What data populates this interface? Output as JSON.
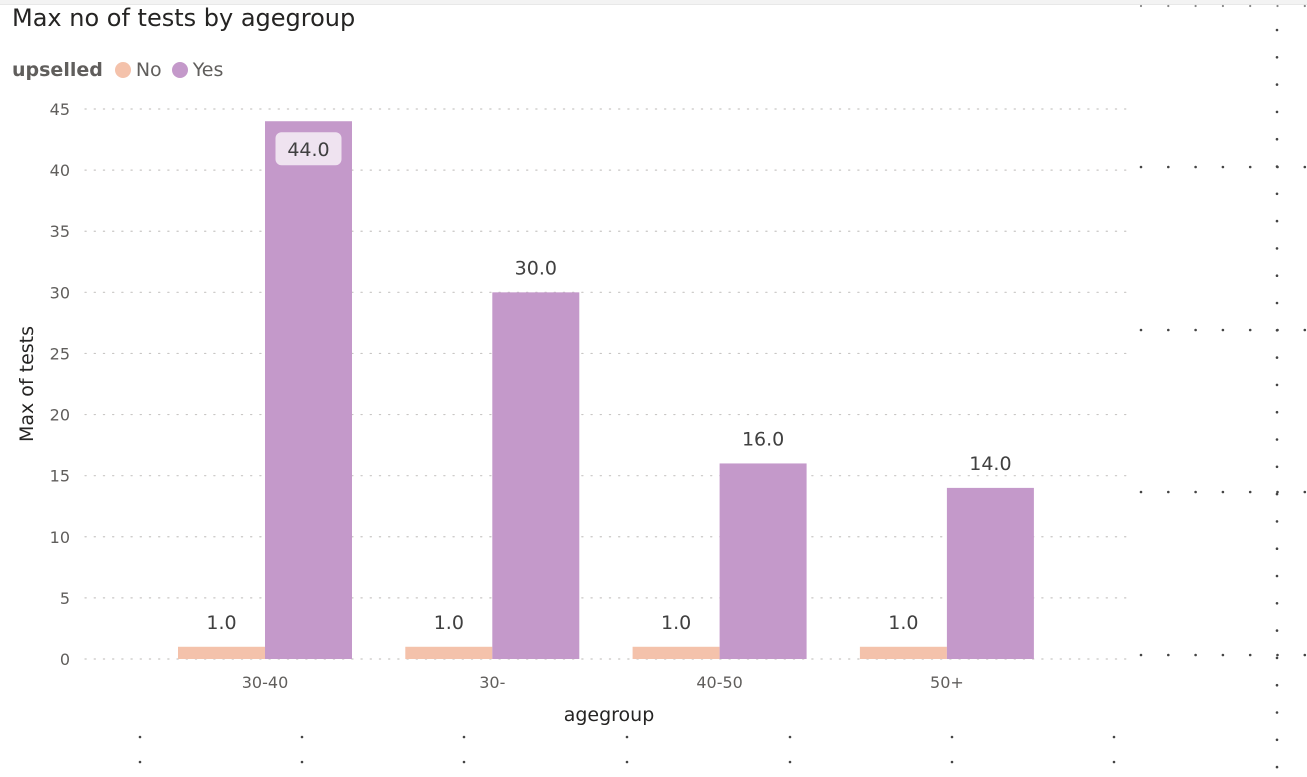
{
  "title": "Max no of tests by agegroup",
  "legend": {
    "title": "upselled",
    "items": [
      {
        "label": "No",
        "color": "#F4C2AB"
      },
      {
        "label": "Yes",
        "color": "#C499CA"
      }
    ]
  },
  "chart_data": {
    "type": "bar",
    "title": "Max no of tests by agegroup",
    "xlabel": "agegroup",
    "ylabel": "Max of tests",
    "categories": [
      "30-40",
      "30-",
      "40-50",
      "50+"
    ],
    "series": [
      {
        "name": "No",
        "color": "#F4C2AB",
        "values": [
          1.0,
          1.0,
          1.0,
          1.0
        ],
        "labels": [
          "1.0",
          "1.0",
          "1.0",
          "1.0"
        ]
      },
      {
        "name": "Yes",
        "color": "#C499CA",
        "values": [
          44.0,
          30.0,
          16.0,
          14.0
        ],
        "labels": [
          "44.0",
          "30.0",
          "16.0",
          "14.0"
        ]
      }
    ],
    "ylim": [
      0,
      45
    ],
    "yticks": [
      0,
      5,
      10,
      15,
      20,
      25,
      30,
      35,
      40,
      45
    ],
    "grid": true,
    "legend_position": "top-left"
  }
}
